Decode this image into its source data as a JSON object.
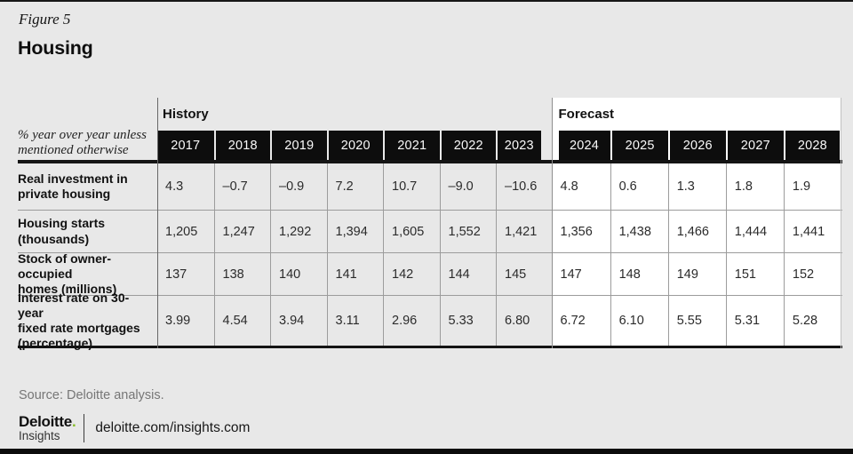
{
  "figure": {
    "label": "Figure 5",
    "title": "Housing"
  },
  "table": {
    "corner_note": "% year over year unless\nmentioned otherwise",
    "history": {
      "label": "History",
      "years": [
        "2017",
        "2018",
        "2019",
        "2020",
        "2021",
        "2022",
        "2023"
      ]
    },
    "forecast": {
      "label": "Forecast",
      "years": [
        "2024",
        "2025",
        "2026",
        "2027",
        "2028"
      ]
    },
    "rows": [
      {
        "label": "Real investment in\nprivate housing",
        "h": [
          "4.3",
          "–0.7",
          "–0.9",
          "7.2",
          "10.7",
          "–9.0",
          "–10.6"
        ],
        "f": [
          "4.8",
          "0.6",
          "1.3",
          "1.8",
          "1.9"
        ]
      },
      {
        "label": "Housing starts\n(thousands)",
        "h": [
          "1,205",
          "1,247",
          "1,292",
          "1,394",
          "1,605",
          "1,552",
          "1,421"
        ],
        "f": [
          "1,356",
          "1,438",
          "1,466",
          "1,444",
          "1,441"
        ]
      },
      {
        "label": "Stock of owner-occupied\nhomes (millions)",
        "h": [
          "137",
          "138",
          "140",
          "141",
          "142",
          "144",
          "145"
        ],
        "f": [
          "147",
          "148",
          "149",
          "151",
          "152"
        ]
      },
      {
        "label": "Interest rate on 30-year\nfixed rate mortgages\n(percentage)",
        "h": [
          "3.99",
          "4.54",
          "3.94",
          "3.11",
          "2.96",
          "5.33",
          "6.80"
        ],
        "f": [
          "6.72",
          "6.10",
          "5.55",
          "5.31",
          "5.28"
        ]
      }
    ]
  },
  "footer": {
    "source": "Source: Deloitte analysis.",
    "logo": {
      "brand": "Deloitte",
      "brand_dot": ".",
      "sub": "Insights"
    },
    "url": "deloitte.com/insights.com"
  },
  "colors": {
    "page_bg": "#e8e8e8",
    "forecast_bg": "#ffffff",
    "year_header_bg": "#0d0d0d",
    "accent_green": "#86bc25",
    "rule_black": "#141414",
    "grid_gray": "#9c9c9c",
    "source_gray": "#767676"
  },
  "chart_data": {
    "type": "table",
    "title": "Housing",
    "unit_note": "% year over year unless mentioned otherwise",
    "column_groups": [
      {
        "label": "History",
        "columns": [
          "2017",
          "2018",
          "2019",
          "2020",
          "2021",
          "2022",
          "2023"
        ]
      },
      {
        "label": "Forecast",
        "columns": [
          "2024",
          "2025",
          "2026",
          "2027",
          "2028"
        ]
      }
    ],
    "rows": [
      {
        "label": "Real investment in private housing",
        "values": [
          4.3,
          -0.7,
          -0.9,
          7.2,
          10.7,
          -9.0,
          -10.6,
          4.8,
          0.6,
          1.3,
          1.8,
          1.9
        ]
      },
      {
        "label": "Housing starts (thousands)",
        "values": [
          1205,
          1247,
          1292,
          1394,
          1605,
          1552,
          1421,
          1356,
          1438,
          1466,
          1444,
          1441
        ]
      },
      {
        "label": "Stock of owner-occupied homes (millions)",
        "values": [
          137,
          138,
          140,
          141,
          142,
          144,
          145,
          147,
          148,
          149,
          151,
          152
        ]
      },
      {
        "label": "Interest rate on 30-year fixed rate mortgages (percentage)",
        "values": [
          3.99,
          4.54,
          3.94,
          3.11,
          2.96,
          5.33,
          6.8,
          6.72,
          6.1,
          5.55,
          5.31,
          5.28
        ]
      }
    ],
    "source": "Source: Deloitte analysis."
  }
}
